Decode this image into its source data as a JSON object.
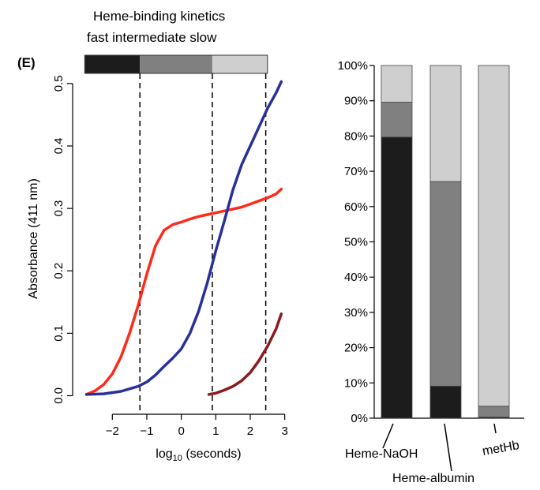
{
  "panel_label": "(E)",
  "header": {
    "title": "Heme-binding kinetics",
    "phase_labels": "fast intermediate slow"
  },
  "colors": {
    "fast": "#1c1c1c",
    "intermediate": "#808080",
    "slow": "#cfcfcf",
    "red": "#ff2a1a",
    "blue": "#28309a",
    "darkred": "#8b1a1f"
  },
  "chart_data": [
    {
      "type": "line",
      "title": "",
      "xlabel_base": "log",
      "xlabel_sub": "10",
      "xlabel_rest": " (seconds)",
      "ylabel": "Absorbance (411 nm)",
      "xlim": [
        -2.9,
        3.1
      ],
      "ylim": [
        -0.012,
        0.515
      ],
      "x_ticks": [
        -2,
        -1,
        0,
        1,
        2,
        3
      ],
      "x_tick_labels": [
        "−2",
        "−1",
        "0",
        "1",
        "2",
        "3"
      ],
      "y_ticks": [
        0.0,
        0.1,
        0.2,
        0.3,
        0.4,
        0.5
      ],
      "y_tick_labels": [
        "0.0",
        "0.1",
        "0.2",
        "0.3",
        "0.4",
        "0.5"
      ],
      "phase_boundaries": [
        -1.2,
        0.9,
        2.45
      ],
      "phase_bar": [
        {
          "phase": "fast",
          "from": -2.8,
          "to": -1.2
        },
        {
          "phase": "intermediate",
          "from": -1.2,
          "to": 0.9
        },
        {
          "phase": "slow",
          "from": 0.9,
          "to": 2.5
        }
      ],
      "series": [
        {
          "color_key": "red",
          "x": [
            -2.75,
            -2.5,
            -2.25,
            -2.0,
            -1.75,
            -1.5,
            -1.25,
            -1.0,
            -0.75,
            -0.5,
            -0.25,
            0.0,
            0.25,
            0.5,
            0.75,
            1.0,
            1.25,
            1.5,
            1.75,
            2.0,
            2.25,
            2.5,
            2.75,
            2.9
          ],
          "y": [
            0.002,
            0.008,
            0.018,
            0.035,
            0.062,
            0.1,
            0.145,
            0.195,
            0.24,
            0.265,
            0.274,
            0.278,
            0.283,
            0.287,
            0.29,
            0.293,
            0.296,
            0.299,
            0.302,
            0.307,
            0.312,
            0.317,
            0.323,
            0.331
          ]
        },
        {
          "color_key": "blue",
          "x": [
            -2.75,
            -2.25,
            -1.75,
            -1.25,
            -1.0,
            -0.75,
            -0.5,
            -0.25,
            0.0,
            0.25,
            0.5,
            0.75,
            1.0,
            1.25,
            1.5,
            1.75,
            2.0,
            2.25,
            2.5,
            2.75,
            2.9
          ],
          "y": [
            0.002,
            0.003,
            0.007,
            0.015,
            0.022,
            0.033,
            0.047,
            0.06,
            0.075,
            0.1,
            0.135,
            0.18,
            0.232,
            0.28,
            0.33,
            0.37,
            0.4,
            0.43,
            0.46,
            0.485,
            0.503
          ]
        },
        {
          "color_key": "darkred",
          "x": [
            0.8,
            1.0,
            1.25,
            1.5,
            1.75,
            2.0,
            2.25,
            2.5,
            2.75,
            2.9
          ],
          "y": [
            0.002,
            0.004,
            0.009,
            0.015,
            0.024,
            0.037,
            0.056,
            0.079,
            0.107,
            0.131
          ]
        }
      ]
    },
    {
      "type": "bar",
      "stacked": true,
      "ylim": [
        0,
        100
      ],
      "y_ticks": [
        0,
        10,
        20,
        30,
        40,
        50,
        60,
        70,
        80,
        90,
        100
      ],
      "y_tick_labels": [
        "0%",
        "10%",
        "20%",
        "30%",
        "40%",
        "50%",
        "60%",
        "70%",
        "80%",
        "90%",
        "100%"
      ],
      "categories": [
        "Heme-NaOH",
        "Heme-albumin",
        "metHb"
      ],
      "series": [
        {
          "phase": "fast",
          "values": [
            79.7,
            9.1,
            0.3
          ]
        },
        {
          "phase": "intermediate",
          "values": [
            9.9,
            58.0,
            3.1
          ]
        },
        {
          "phase": "slow",
          "values": [
            10.4,
            32.9,
            96.6
          ]
        }
      ]
    }
  ]
}
